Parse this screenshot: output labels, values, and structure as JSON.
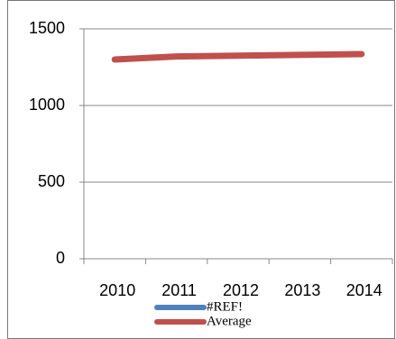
{
  "chart_data": {
    "type": "line",
    "categories": [
      "2010",
      "2011",
      "2012",
      "2013",
      "2014"
    ],
    "series": [
      {
        "name": "#REF!",
        "color": "#4f81bd",
        "values": [
          null,
          null,
          null,
          null,
          null
        ]
      },
      {
        "name": "Average",
        "color": "#c0504d",
        "values": [
          1300,
          1320,
          1325,
          1330,
          1335
        ]
      }
    ],
    "ylim": [
      0,
      1500
    ],
    "yticks": [
      0,
      500,
      1000,
      1500
    ],
    "grid": true,
    "legend": "bottom"
  }
}
